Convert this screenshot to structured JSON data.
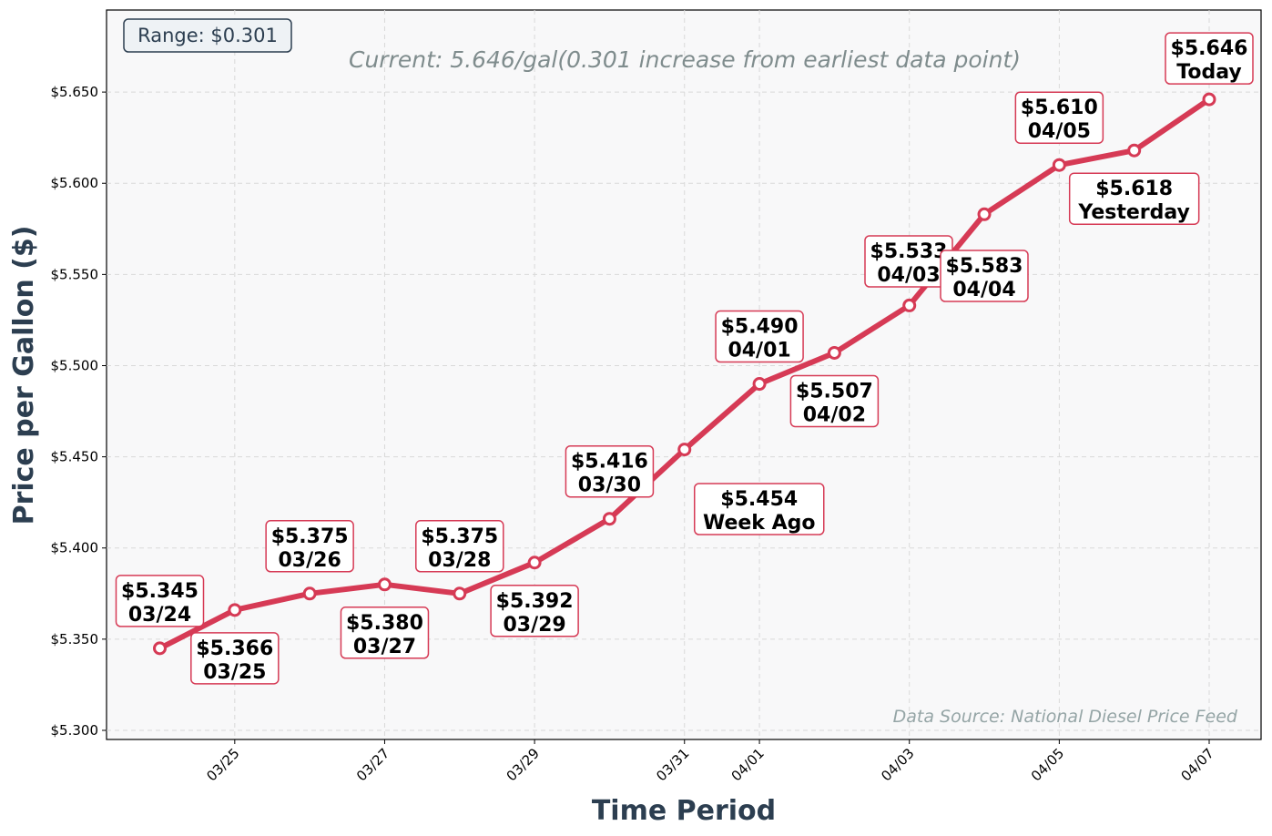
{
  "chart_data": {
    "type": "line",
    "x": [
      "03/24",
      "03/25",
      "03/26",
      "03/27",
      "03/28",
      "03/29",
      "03/30",
      "03/31",
      "04/01",
      "04/02",
      "04/03",
      "04/04",
      "04/05",
      "04/06",
      "04/07"
    ],
    "values": [
      5.345,
      5.366,
      5.375,
      5.38,
      5.375,
      5.392,
      5.416,
      5.454,
      5.49,
      5.507,
      5.533,
      5.583,
      5.61,
      5.618,
      5.646
    ],
    "point_labels": [
      {
        "price": "$5.345",
        "date": "03/24"
      },
      {
        "price": "$5.366",
        "date": "03/25"
      },
      {
        "price": "$5.375",
        "date": "03/26"
      },
      {
        "price": "$5.380",
        "date": "03/27"
      },
      {
        "price": "$5.375",
        "date": "03/28"
      },
      {
        "price": "$5.392",
        "date": "03/29"
      },
      {
        "price": "$5.416",
        "date": "03/30"
      },
      {
        "price": "$5.454",
        "date": "Week Ago"
      },
      {
        "price": "$5.490",
        "date": "04/01"
      },
      {
        "price": "$5.507",
        "date": "04/02"
      },
      {
        "price": "$5.533",
        "date": "04/03"
      },
      {
        "price": "$5.583",
        "date": "04/04"
      },
      {
        "price": "$5.610",
        "date": "04/05"
      },
      {
        "price": "$5.618",
        "date": "Yesterday"
      },
      {
        "price": "$5.646",
        "date": "Today"
      }
    ],
    "xlabel": "Time Period",
    "ylabel": "Price per Gallon ($)",
    "ylim": [
      5.295,
      5.695
    ],
    "yticks": [
      5.3,
      5.35,
      5.4,
      5.45,
      5.5,
      5.55,
      5.6,
      5.65
    ],
    "ytick_labels": [
      "$5.300",
      "$5.350",
      "$5.400",
      "$5.450",
      "$5.500",
      "$5.550",
      "$5.600",
      "$5.650"
    ],
    "xtick_labels": [
      "03/25",
      "03/27",
      "03/29",
      "03/31",
      "04/01",
      "04/03",
      "04/05",
      "04/07"
    ],
    "grid": true,
    "series_color": "#d63a55",
    "range_label": "Range: $0.301",
    "current_label": "Current: 5.646/gal(0.301 increase from earliest data point)",
    "source_label": "Data Source: National Diesel Price Feed"
  }
}
